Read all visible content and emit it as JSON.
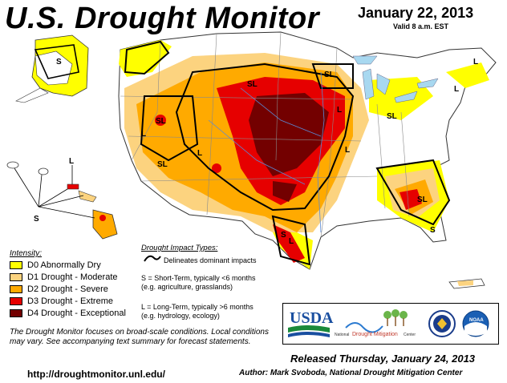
{
  "header": {
    "title": "U.S. Drought Monitor",
    "date": "January 22, 2013",
    "valid": "Valid 8 a.m. EST"
  },
  "legend": {
    "title": "Intensity:",
    "items": [
      {
        "label": "D0 Abnormally Dry",
        "color": "#ffff00"
      },
      {
        "label": "D1 Drought - Moderate",
        "color": "#fcd37f"
      },
      {
        "label": "D2 Drought - Severe",
        "color": "#ffaa00"
      },
      {
        "label": "D3 Drought - Extreme",
        "color": "#e60000"
      },
      {
        "label": "D4 Drought - Exceptional",
        "color": "#730000"
      }
    ]
  },
  "impact_types": {
    "title": "Drought Impact Types:",
    "delineates": "Delineates dominant impacts",
    "short_term": "S = Short-Term, typically <6 months",
    "short_term_eg": "(e.g. agriculture, grasslands)",
    "long_term": "L = Long-Term, typically >6 months",
    "long_term_eg": "(e.g. hydrology, ecology)"
  },
  "note": "The Drought Monitor focuses on broad-scale conditions. Local conditions may vary.  See accompanying text summary for forecast statements.",
  "url": "http://droughtmonitor.unl.edu/",
  "released": "Released Thursday, January 24, 2013",
  "author": "Author: Mark Svoboda, National Drought Mitigation Center",
  "logos": {
    "usda": "USDA",
    "ndmc_prefix": "National",
    "ndmc_main": "Drought Mitigation",
    "ndmc_suffix": "Center",
    "noaa": "NOAA"
  },
  "map_labels": {
    "short": "S",
    "long": "L",
    "short_long": "SL"
  }
}
